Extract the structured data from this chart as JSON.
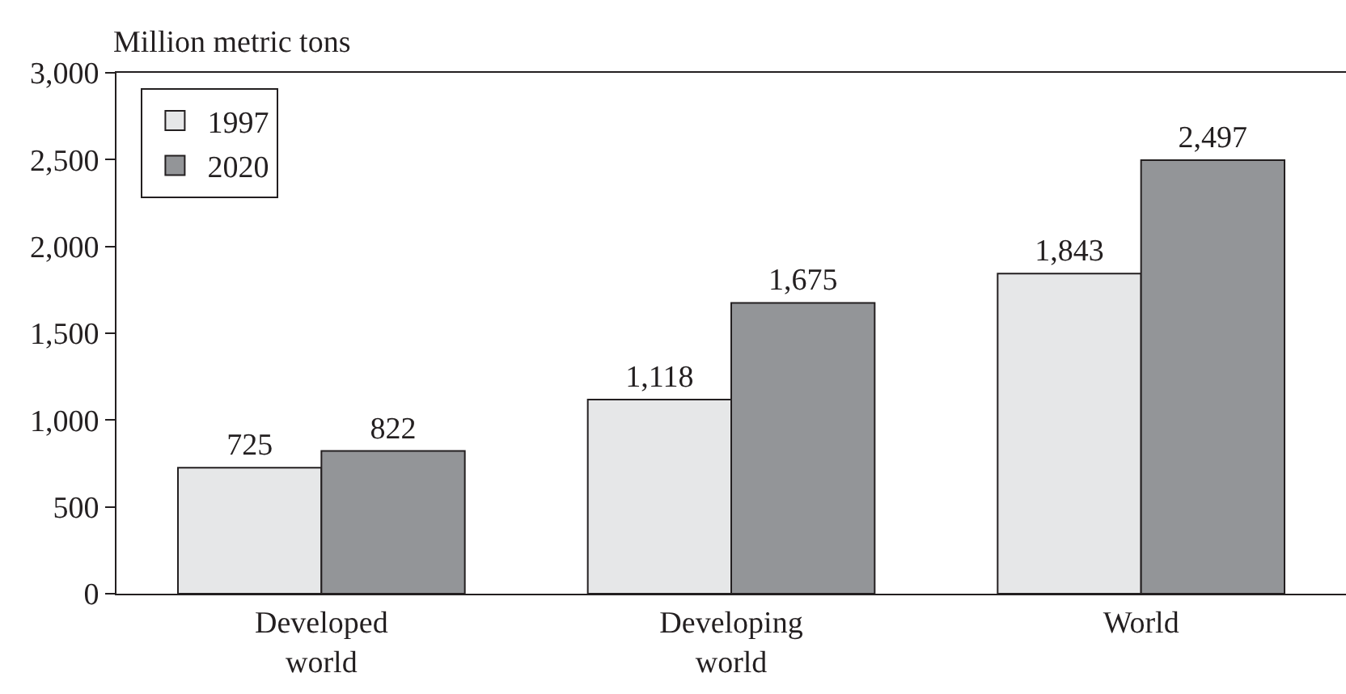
{
  "chart_data": {
    "type": "bar",
    "ylabel": "Million metric tons",
    "categories": [
      "Developed world",
      "Developing world",
      "World"
    ],
    "series": [
      {
        "name": "1997",
        "color": "#e6e7e8",
        "values": [
          725,
          1118,
          1843
        ],
        "value_labels": [
          "725",
          "1,118",
          "1,843"
        ]
      },
      {
        "name": "2020",
        "color": "#939598",
        "values": [
          822,
          1675,
          2497
        ],
        "value_labels": [
          "822",
          "1,675",
          "2,497"
        ]
      }
    ],
    "ylim": [
      0,
      3000
    ],
    "yticks": [
      0,
      500,
      {
        "value": 1000,
        "label": "1,000"
      },
      {
        "value": 1500,
        "label": "1,500"
      },
      {
        "value": 2000,
        "label": "2,000"
      },
      {
        "value": 2500,
        "label": "2,500"
      },
      {
        "value": 3000,
        "label": "3,000"
      }
    ],
    "grid": false,
    "legend": "top left"
  }
}
